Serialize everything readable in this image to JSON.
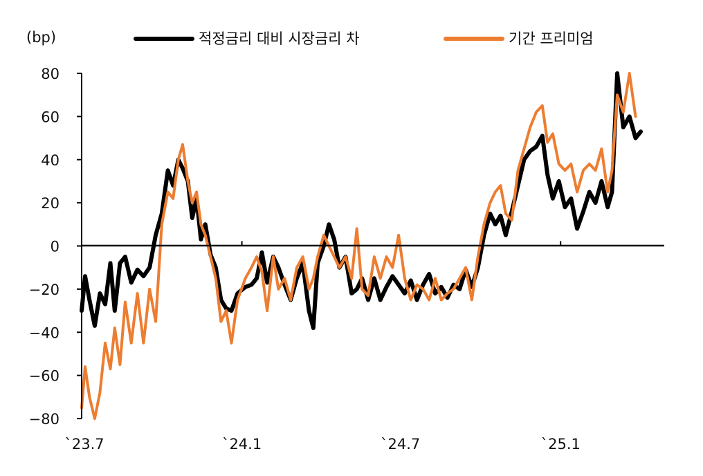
{
  "chart_data": {
    "type": "line",
    "title": "",
    "xlabel": "",
    "ylabel": "(bp)",
    "ylim": [
      -80,
      80
    ],
    "yticks": [
      80,
      60,
      40,
      20,
      0,
      -20,
      -40,
      -60,
      -80
    ],
    "ytick_labels": [
      "80",
      "60",
      "40",
      "20",
      "0",
      "−20",
      "−40",
      "−60",
      "−80"
    ],
    "xtick_labels": [
      "`23.7",
      "`24.1",
      "`24.7",
      "`25.1"
    ],
    "xlim": [
      "2023-07-01",
      "2025-04-30"
    ],
    "xticks": [
      "2023-07-01",
      "2024-01-01",
      "2024-07-01",
      "2025-01-01"
    ],
    "legend_position": "top",
    "series": [
      {
        "name": "적정금리 대비 시장금리 차",
        "color": "#000000",
        "points": [
          [
            "2023-07-01",
            -30
          ],
          [
            "2023-07-05",
            -14
          ],
          [
            "2023-07-10",
            -25
          ],
          [
            "2023-07-16",
            -37
          ],
          [
            "2023-07-22",
            -22
          ],
          [
            "2023-07-28",
            -27
          ],
          [
            "2023-08-03",
            -8
          ],
          [
            "2023-08-08",
            -30
          ],
          [
            "2023-08-14",
            -8
          ],
          [
            "2023-08-20",
            -5
          ],
          [
            "2023-08-27",
            -17
          ],
          [
            "2023-09-03",
            -11
          ],
          [
            "2023-09-10",
            -14
          ],
          [
            "2023-09-17",
            -10
          ],
          [
            "2023-09-24",
            5
          ],
          [
            "2023-10-01",
            15
          ],
          [
            "2023-10-08",
            35
          ],
          [
            "2023-10-14",
            28
          ],
          [
            "2023-10-20",
            40
          ],
          [
            "2023-10-25",
            36
          ],
          [
            "2023-10-31",
            30
          ],
          [
            "2023-11-05",
            13
          ],
          [
            "2023-11-10",
            22
          ],
          [
            "2023-11-15",
            3
          ],
          [
            "2023-11-20",
            10
          ],
          [
            "2023-11-26",
            -4
          ],
          [
            "2023-12-02",
            -10
          ],
          [
            "2023-12-08",
            -25
          ],
          [
            "2023-12-14",
            -29
          ],
          [
            "2023-12-20",
            -30
          ],
          [
            "2023-12-27",
            -22
          ],
          [
            "2024-01-05",
            -19
          ],
          [
            "2024-01-12",
            -18
          ],
          [
            "2024-01-18",
            -15
          ],
          [
            "2024-01-24",
            -3
          ],
          [
            "2024-01-30",
            -17
          ],
          [
            "2024-02-06",
            -5
          ],
          [
            "2024-02-12",
            -10
          ],
          [
            "2024-02-19",
            -18
          ],
          [
            "2024-02-26",
            -25
          ],
          [
            "2024-03-04",
            -15
          ],
          [
            "2024-03-11",
            -8
          ],
          [
            "2024-03-18",
            -30
          ],
          [
            "2024-03-23",
            -38
          ],
          [
            "2024-03-28",
            -8
          ],
          [
            "2024-04-04",
            0
          ],
          [
            "2024-04-10",
            10
          ],
          [
            "2024-04-16",
            3
          ],
          [
            "2024-04-22",
            -10
          ],
          [
            "2024-04-29",
            -5
          ],
          [
            "2024-05-06",
            -22
          ],
          [
            "2024-05-12",
            -20
          ],
          [
            "2024-05-18",
            -15
          ],
          [
            "2024-05-25",
            -25
          ],
          [
            "2024-06-01",
            -15
          ],
          [
            "2024-06-08",
            -25
          ],
          [
            "2024-06-15",
            -19
          ],
          [
            "2024-06-22",
            -14
          ],
          [
            "2024-06-29",
            -18
          ],
          [
            "2024-07-06",
            -22
          ],
          [
            "2024-07-13",
            -16
          ],
          [
            "2024-07-20",
            -25
          ],
          [
            "2024-07-27",
            -18
          ],
          [
            "2024-08-03",
            -13
          ],
          [
            "2024-08-10",
            -22
          ],
          [
            "2024-08-17",
            -19
          ],
          [
            "2024-08-24",
            -24
          ],
          [
            "2024-08-31",
            -18
          ],
          [
            "2024-09-07",
            -20
          ],
          [
            "2024-09-14",
            -11
          ],
          [
            "2024-09-21",
            -19
          ],
          [
            "2024-09-28",
            -10
          ],
          [
            "2024-10-05",
            5
          ],
          [
            "2024-10-12",
            15
          ],
          [
            "2024-10-18",
            10
          ],
          [
            "2024-10-24",
            14
          ],
          [
            "2024-10-30",
            5
          ],
          [
            "2024-11-06",
            16
          ],
          [
            "2024-11-13",
            28
          ],
          [
            "2024-11-20",
            40
          ],
          [
            "2024-11-27",
            44
          ],
          [
            "2024-12-04",
            46
          ],
          [
            "2024-12-11",
            51
          ],
          [
            "2024-12-17",
            33
          ],
          [
            "2024-12-23",
            22
          ],
          [
            "2024-12-30",
            30
          ],
          [
            "2025-01-06",
            18
          ],
          [
            "2025-01-13",
            22
          ],
          [
            "2025-01-20",
            8
          ],
          [
            "2025-01-27",
            16
          ],
          [
            "2025-02-03",
            25
          ],
          [
            "2025-02-10",
            20
          ],
          [
            "2025-02-17",
            30
          ],
          [
            "2025-02-24",
            18
          ],
          [
            "2025-03-01",
            25
          ],
          [
            "2025-03-07",
            80
          ],
          [
            "2025-03-14",
            55
          ],
          [
            "2025-03-21",
            60
          ],
          [
            "2025-03-28",
            50
          ],
          [
            "2025-04-03",
            53
          ]
        ]
      },
      {
        "name": "기간 프리미엄",
        "color": "#ed7d31",
        "points": [
          [
            "2023-07-01",
            -75
          ],
          [
            "2023-07-05",
            -56
          ],
          [
            "2023-07-10",
            -70
          ],
          [
            "2023-07-16",
            -82
          ],
          [
            "2023-07-22",
            -68
          ],
          [
            "2023-07-28",
            -45
          ],
          [
            "2023-08-03",
            -57
          ],
          [
            "2023-08-08",
            -38
          ],
          [
            "2023-08-14",
            -55
          ],
          [
            "2023-08-20",
            -26
          ],
          [
            "2023-08-27",
            -45
          ],
          [
            "2023-09-03",
            -22
          ],
          [
            "2023-09-10",
            -45
          ],
          [
            "2023-09-17",
            -20
          ],
          [
            "2023-09-24",
            -35
          ],
          [
            "2023-10-01",
            10
          ],
          [
            "2023-10-08",
            25
          ],
          [
            "2023-10-14",
            22
          ],
          [
            "2023-10-20",
            40
          ],
          [
            "2023-10-25",
            47
          ],
          [
            "2023-10-31",
            30
          ],
          [
            "2023-11-05",
            20
          ],
          [
            "2023-11-10",
            25
          ],
          [
            "2023-11-15",
            10
          ],
          [
            "2023-11-20",
            5
          ],
          [
            "2023-11-26",
            -5
          ],
          [
            "2023-12-02",
            -15
          ],
          [
            "2023-12-08",
            -35
          ],
          [
            "2023-12-14",
            -30
          ],
          [
            "2023-12-20",
            -45
          ],
          [
            "2023-12-27",
            -25
          ],
          [
            "2024-01-05",
            -15
          ],
          [
            "2024-01-12",
            -10
          ],
          [
            "2024-01-18",
            -5
          ],
          [
            "2024-01-24",
            -12
          ],
          [
            "2024-01-30",
            -30
          ],
          [
            "2024-02-06",
            -5
          ],
          [
            "2024-02-12",
            -20
          ],
          [
            "2024-02-19",
            -15
          ],
          [
            "2024-02-26",
            -25
          ],
          [
            "2024-03-04",
            -10
          ],
          [
            "2024-03-11",
            -5
          ],
          [
            "2024-03-18",
            -20
          ],
          [
            "2024-03-23",
            -15
          ],
          [
            "2024-03-28",
            -5
          ],
          [
            "2024-04-04",
            5
          ],
          [
            "2024-04-10",
            0
          ],
          [
            "2024-04-16",
            -5
          ],
          [
            "2024-04-22",
            -10
          ],
          [
            "2024-04-29",
            -5
          ],
          [
            "2024-05-06",
            -15
          ],
          [
            "2024-05-12",
            8
          ],
          [
            "2024-05-18",
            -20
          ],
          [
            "2024-05-25",
            -23
          ],
          [
            "2024-06-01",
            -5
          ],
          [
            "2024-06-08",
            -15
          ],
          [
            "2024-06-15",
            -5
          ],
          [
            "2024-06-22",
            -10
          ],
          [
            "2024-06-29",
            5
          ],
          [
            "2024-07-06",
            -15
          ],
          [
            "2024-07-13",
            -25
          ],
          [
            "2024-07-20",
            -18
          ],
          [
            "2024-07-27",
            -20
          ],
          [
            "2024-08-03",
            -25
          ],
          [
            "2024-08-10",
            -15
          ],
          [
            "2024-08-17",
            -25
          ],
          [
            "2024-08-24",
            -22
          ],
          [
            "2024-08-31",
            -20
          ],
          [
            "2024-09-07",
            -15
          ],
          [
            "2024-09-14",
            -10
          ],
          [
            "2024-09-21",
            -25
          ],
          [
            "2024-09-28",
            -5
          ],
          [
            "2024-10-05",
            10
          ],
          [
            "2024-10-12",
            20
          ],
          [
            "2024-10-18",
            25
          ],
          [
            "2024-10-24",
            28
          ],
          [
            "2024-10-30",
            15
          ],
          [
            "2024-11-06",
            12
          ],
          [
            "2024-11-13",
            35
          ],
          [
            "2024-11-20",
            45
          ],
          [
            "2024-11-27",
            55
          ],
          [
            "2024-12-04",
            62
          ],
          [
            "2024-12-11",
            65
          ],
          [
            "2024-12-17",
            48
          ],
          [
            "2024-12-23",
            52
          ],
          [
            "2024-12-30",
            38
          ],
          [
            "2025-01-06",
            35
          ],
          [
            "2025-01-13",
            38
          ],
          [
            "2025-01-20",
            25
          ],
          [
            "2025-01-27",
            35
          ],
          [
            "2025-02-03",
            38
          ],
          [
            "2025-02-10",
            35
          ],
          [
            "2025-02-17",
            45
          ],
          [
            "2025-02-24",
            25
          ],
          [
            "2025-03-01",
            35
          ],
          [
            "2025-03-07",
            70
          ],
          [
            "2025-03-14",
            62
          ],
          [
            "2025-03-21",
            82
          ],
          [
            "2025-03-28",
            60
          ]
        ]
      }
    ]
  }
}
